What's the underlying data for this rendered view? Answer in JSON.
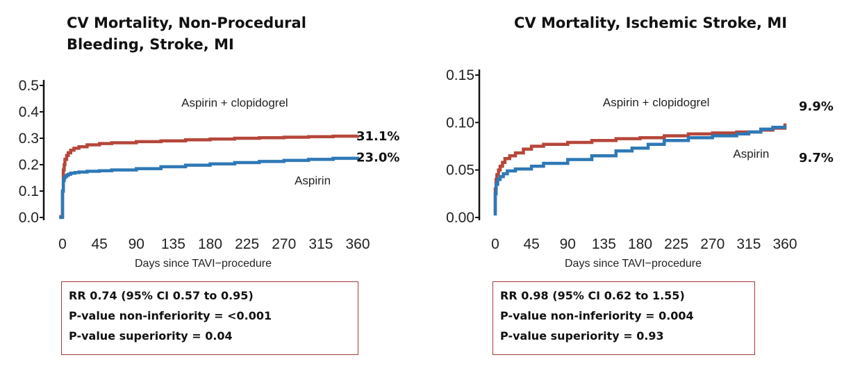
{
  "chart_data": [
    {
      "type": "line",
      "title": "CV Mortality, Non-Procedural\nBleeding, Stroke, MI",
      "xlabel": "Days since TAVI−procedure",
      "ylabel": "",
      "xlim": [
        -5,
        365
      ],
      "ylim": [
        0,
        0.5
      ],
      "x_ticks": [
        0,
        45,
        90,
        135,
        180,
        225,
        270,
        315,
        360
      ],
      "y_ticks": [
        0.0,
        0.1,
        0.2,
        0.3,
        0.4,
        0.5
      ],
      "y_tick_labels": [
        "0.0",
        "0.1",
        "0.2",
        "0.3",
        "0.4",
        "0.5"
      ],
      "grid": false,
      "series": [
        {
          "name": "Aspirin + clopidogrel",
          "color": "#b5473a",
          "end_label": "31.1%",
          "x": [
            -4,
            0,
            0,
            1,
            2,
            3,
            5,
            7,
            10,
            14,
            20,
            30,
            45,
            60,
            90,
            120,
            150,
            180,
            210,
            240,
            270,
            300,
            330,
            360
          ],
          "y": [
            0.003,
            0.003,
            0.1,
            0.18,
            0.2,
            0.22,
            0.235,
            0.245,
            0.255,
            0.262,
            0.268,
            0.275,
            0.28,
            0.283,
            0.287,
            0.29,
            0.294,
            0.297,
            0.3,
            0.302,
            0.304,
            0.306,
            0.308,
            0.311
          ]
        },
        {
          "name": "Aspirin",
          "color": "#2f78b6",
          "end_label": "23.0%",
          "x": [
            -4,
            0,
            0,
            1,
            2,
            3,
            5,
            7,
            10,
            15,
            20,
            30,
            45,
            60,
            90,
            120,
            150,
            180,
            210,
            240,
            270,
            300,
            330,
            360
          ],
          "y": [
            0.0,
            0.0,
            0.1,
            0.14,
            0.15,
            0.155,
            0.16,
            0.164,
            0.168,
            0.17,
            0.172,
            0.175,
            0.177,
            0.18,
            0.185,
            0.192,
            0.198,
            0.203,
            0.208,
            0.212,
            0.216,
            0.22,
            0.224,
            0.23
          ]
        }
      ],
      "annotations": [
        {
          "text": "Aspirin + clopidogrel",
          "x": 210,
          "y": 0.42
        },
        {
          "text": "Aspirin",
          "x": 305,
          "y": 0.125
        }
      ],
      "stats_box": [
        "RR 0.74 (95% CI 0.57 to 0.95)",
        "P-value non-inferiority = <0.001",
        "P-value superiority = 0.04"
      ]
    },
    {
      "type": "line",
      "title": "CV Mortality, Ischemic Stroke, MI",
      "xlabel": "Days since TAVI−procedure",
      "ylabel": "",
      "xlim": [
        -3,
        370
      ],
      "ylim": [
        0,
        0.15
      ],
      "x_ticks": [
        0,
        45,
        90,
        135,
        180,
        225,
        270,
        315,
        360
      ],
      "y_ticks": [
        0.0,
        0.05,
        0.1,
        0.15
      ],
      "y_tick_labels": [
        "0.00",
        "0.05",
        "0.10",
        "0.15"
      ],
      "grid": false,
      "series": [
        {
          "name": "Aspirin + clopidogrel",
          "color": "#b5473a",
          "end_label": "9.9%",
          "x": [
            0,
            0,
            1,
            2,
            4,
            6,
            9,
            12,
            18,
            25,
            35,
            45,
            60,
            90,
            120,
            150,
            180,
            210,
            240,
            270,
            300,
            330,
            345,
            360
          ],
          "y": [
            0.005,
            0.03,
            0.04,
            0.045,
            0.05,
            0.054,
            0.058,
            0.062,
            0.065,
            0.068,
            0.072,
            0.075,
            0.077,
            0.079,
            0.081,
            0.083,
            0.084,
            0.086,
            0.088,
            0.089,
            0.09,
            0.092,
            0.094,
            0.099
          ]
        },
        {
          "name": "Aspirin",
          "color": "#2f78b6",
          "end_label": "9.7%",
          "x": [
            0,
            0,
            1,
            3,
            6,
            10,
            15,
            25,
            45,
            60,
            90,
            120,
            150,
            170,
            190,
            210,
            240,
            270,
            300,
            315,
            330,
            345,
            360
          ],
          "y": [
            0.002,
            0.025,
            0.035,
            0.04,
            0.043,
            0.046,
            0.049,
            0.051,
            0.054,
            0.057,
            0.061,
            0.065,
            0.07,
            0.073,
            0.077,
            0.081,
            0.084,
            0.086,
            0.088,
            0.09,
            0.093,
            0.095,
            0.097
          ]
        }
      ],
      "annotations": [
        {
          "text": "Aspirin + clopidogrel",
          "x": 200,
          "y": 0.117
        },
        {
          "text": "Aspirin",
          "x": 318,
          "y": 0.063
        }
      ],
      "stats_box": [
        "RR 0.98 (95% CI 0.62 to 1.55)",
        "P-value non-inferiority = 0.004",
        "P-value superiority = 0.93"
      ]
    }
  ]
}
